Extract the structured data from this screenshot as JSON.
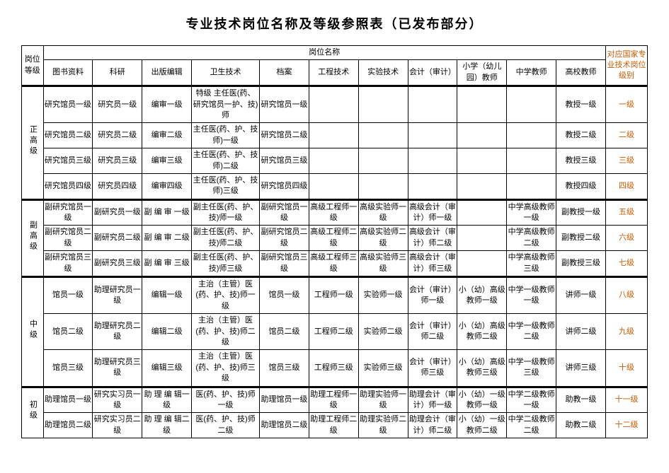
{
  "title": "专业技术岗位名称及等级参照表（已发布部分）",
  "header": {
    "level": "岗位等级",
    "group": "岗位名称",
    "col1": "图书资料",
    "col2": "科研",
    "col3": "出版编辑",
    "col4": "卫生技术",
    "col5": "档案",
    "col6": "工程技术",
    "col7": "实验技术",
    "col8": "会计（审计）",
    "col9": "小学（幼儿园）教师",
    "col10": "中学教师",
    "col11": "高校教师",
    "national": "对应国家专业技术岗位级别"
  },
  "groups": {
    "g1": "正高级",
    "g2": "副高级",
    "g3": "中级",
    "g4": "初级"
  },
  "rows": {
    "r1": {
      "c1": "研究馆员一级",
      "c2": "研究员一级",
      "c3": "编审一级",
      "c4": "特级 主任医(药、研究馆员一护、技)师",
      "c5": "研究馆员一级",
      "c11": "教授一级",
      "lvl": "一级"
    },
    "r2": {
      "c1": "研究馆员二级",
      "c2": "研究员二级",
      "c3": "编审二级",
      "c4": "主任医(药、护、技 师)一级",
      "c5": "研究馆员二级",
      "c11": "教授二级",
      "lvl": "二级"
    },
    "r3": {
      "c1": "研究馆员三级",
      "c2": "研究员三级",
      "c3": "编审三级",
      "c4": "主任医(药、护、技 师)二级",
      "c5": "研究馆员三级",
      "c11": "教授三级",
      "lvl": "三级"
    },
    "r4": {
      "c1": "研究馆员四级",
      "c2": "研究员四级",
      "c3": "编审四级",
      "c4": "主任医(药、护、技 师)三级",
      "c5": "研究馆员四级",
      "c11": "教授四级",
      "lvl": "四级"
    },
    "r5": {
      "c1": "副研究馆员一级",
      "c2": "副研究员一级",
      "c3": "副 编 审 一级",
      "c4": "副主任医(药、护、技)师一级",
      "c5": "副研究馆员一级",
      "c6": "高级工程师一级",
      "c7": "高级实验师一级",
      "c8": "高级会计（审计）师一级",
      "c10": "中学高级教师一级",
      "c11": "副教授一级",
      "lvl": "五级"
    },
    "r6": {
      "c1": "副研究馆员二级",
      "c2": "副研究员二级",
      "c3": "副 编 审 二级",
      "c4": "副主任医(药、护、技)师二级",
      "c5": "副研究馆员二级",
      "c6": "高级工程师二级",
      "c7": "高级实验师二级",
      "c8": "高级会计（审计）师二级",
      "c10": "中学高级教师二级",
      "c11": "副教授二级",
      "lvl": "六级"
    },
    "r7": {
      "c1": "副研究馆员三级",
      "c2": "副研究员三级",
      "c3": "副 编 审 三级",
      "c4": "副主任医(药、护、技)师三级",
      "c5": "副研究馆员三级",
      "c6": "高级工程师三级",
      "c7": "高级实验师三级",
      "c8": "高级会计（审计）师三级",
      "c10": "中学高级教师三级",
      "c11": "副教授三级",
      "lvl": "七级"
    },
    "r8": {
      "c1": "馆员一级",
      "c2": "助理研究员一级",
      "c3": "编辑一级",
      "c4": "主治（主管）医(药、护、技)师一级",
      "c5": "馆员一级",
      "c6": "工程师一级",
      "c7": "实验师一级",
      "c8": "会计（审计）师一级",
      "c9": "小（幼）高级教师一级",
      "c10": "中学一级教师一级",
      "c11": "讲师一级",
      "lvl": "八级"
    },
    "r9": {
      "c1": "馆员二级",
      "c2": "助理研究员二级",
      "c3": "编辑二级",
      "c4": "主治（主管）医(药、护、技)师二级",
      "c5": "馆员二级",
      "c6": "工程师二级",
      "c7": "实验师二级",
      "c8": "会计（审计）师二级",
      "c9": "小（幼）高级教师二级",
      "c10": "中学一级教师二级",
      "c11": "讲师二级",
      "lvl": "九级"
    },
    "r10": {
      "c1": "馆员三级",
      "c2": "助理研究员三级",
      "c3": "编辑三级",
      "c4": "主治（主管）医(药、护、技)师三级",
      "c5": "馆员三级",
      "c6": "工程师三级",
      "c7": "实验师三级",
      "c8": "会计（审计）师三级",
      "c9": "小（幼）高级教师三级",
      "c10": "中学一级教师三级",
      "c11": "讲师三级",
      "lvl": "十级"
    },
    "r11": {
      "c1": "助理馆员一级",
      "c2": "研究实习员一级",
      "c3": "助 理 编 辑一级",
      "c4": "医(药、护、技)师一级",
      "c5": "助理馆员一级",
      "c6": "助理工程师一级",
      "c7": "助理实验师一级",
      "c8": "助理会计（审计）师一级",
      "c9": "小（幼）一级教师一级",
      "c10": "中学二级教师一级",
      "c11": "助教一级",
      "lvl": "十一级"
    },
    "r12": {
      "c1": "助理馆员二级",
      "c2": "研究实习员二级",
      "c3": "助 理 编 辑二级",
      "c4": "医(药、护、技)师二级",
      "c5": "助理馆员二级",
      "c6": "助理工程师二级",
      "c7": "助理实验师二级",
      "c8": "助理会计（审计）师二级",
      "c9": "小（幼）一级教师二级",
      "c10": "中学二级教师二级",
      "c11": "助教二级",
      "lvl": "十二级"
    }
  }
}
